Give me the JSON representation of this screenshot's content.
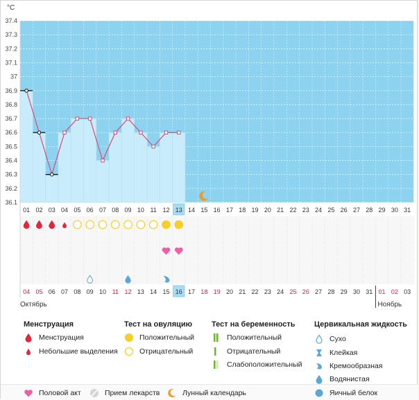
{
  "chart_data": {
    "type": "line",
    "ylabel": "°C",
    "y_ticks": [
      "37.4",
      "37.3",
      "37.2",
      "37.1",
      "37",
      "36.9",
      "36.8",
      "36.7",
      "36.6",
      "36.5",
      "36.4",
      "36.3",
      "36.2",
      "36.1"
    ],
    "ylim": [
      36.1,
      37.4
    ],
    "cycle_days": [
      "01",
      "02",
      "03",
      "04",
      "05",
      "06",
      "07",
      "08",
      "09",
      "10",
      "11",
      "12",
      "13",
      "14",
      "15",
      "16",
      "17",
      "18",
      "19",
      "20",
      "21",
      "22",
      "23",
      "24",
      "25",
      "26",
      "27",
      "28",
      "29",
      "30",
      "31"
    ],
    "current_cycle_day": "13",
    "series": [
      {
        "values": [
          36.9,
          36.6,
          36.3,
          36.6,
          36.7,
          36.7,
          36.4,
          36.6,
          36.7,
          36.6,
          36.5,
          36.6,
          36.6
        ]
      }
    ],
    "markers": [
      "open-dot-bar",
      "open-dot-bar",
      "open-dot-bar",
      "dot",
      "dot",
      "dot",
      "dot",
      "dot",
      "dot",
      "dot",
      "dot",
      "dot",
      "dot"
    ],
    "moon_day": "15",
    "grid": true
  },
  "symptoms": {
    "menstruation": [
      "heavy",
      "heavy",
      "heavy",
      "light",
      "none",
      "none",
      "none",
      "none",
      "none",
      "none",
      "none",
      "none",
      "none"
    ],
    "ovulation": [
      "none",
      "none",
      "none",
      "none",
      "negative",
      "negative",
      "negative",
      "negative",
      "negative",
      "negative",
      "negative",
      "positive",
      "positive"
    ],
    "intercourse": [
      "none",
      "none",
      "none",
      "none",
      "none",
      "none",
      "none",
      "none",
      "none",
      "none",
      "none",
      "heart",
      "heart"
    ],
    "cervical": [
      "none",
      "none",
      "none",
      "none",
      "none",
      "dry",
      "none",
      "none",
      "watery",
      "none",
      "none",
      "creamy",
      "none"
    ]
  },
  "calendar": {
    "dates": [
      "04",
      "05",
      "06",
      "07",
      "08",
      "09",
      "10",
      "11",
      "12",
      "13",
      "14",
      "15",
      "16",
      "17",
      "18",
      "19",
      "20",
      "21",
      "22",
      "23",
      "24",
      "25",
      "26",
      "27",
      "28",
      "29",
      "30",
      "31",
      "01",
      "02",
      "03"
    ],
    "red_dates": [
      0,
      1,
      7,
      8,
      14,
      15,
      21,
      22,
      28,
      29
    ],
    "today_index": 12,
    "month_left": "Октябрь",
    "month_right": "Ноябрь"
  },
  "colors": {
    "sky": "#8dd3f0",
    "bar": "#c9ecfb",
    "line": "#d64a7a",
    "menstruation": "#e0273b",
    "ovulation": "#f6cf2a",
    "heart": "#ee5fa5",
    "drop": "#5aa7da",
    "moon": "#f09a2a",
    "red_date": "#d0284a",
    "green": "#6fb330"
  },
  "legend": {
    "menstruation": {
      "title": "Менструация",
      "items": [
        "Менструация",
        "Небольшие выделения"
      ]
    },
    "ovulation_test": {
      "title": "Тест на овуляцию",
      "items": [
        "Положительный",
        "Отрицательный"
      ]
    },
    "pregnancy_test": {
      "title": "Тест на беременность",
      "items": [
        "Положительный",
        "Отрицательный",
        "Слабоположительный"
      ]
    },
    "cervical_fluid": {
      "title": "Цервикальная жидкость",
      "items": [
        "Сухо",
        "Клейкая",
        "Кремообразная",
        "Водянистая",
        "Яичный белок"
      ]
    },
    "bottom": {
      "intercourse": "Половой акт",
      "medication": "Прием лекарств",
      "lunar": "Лунный календарь"
    }
  }
}
